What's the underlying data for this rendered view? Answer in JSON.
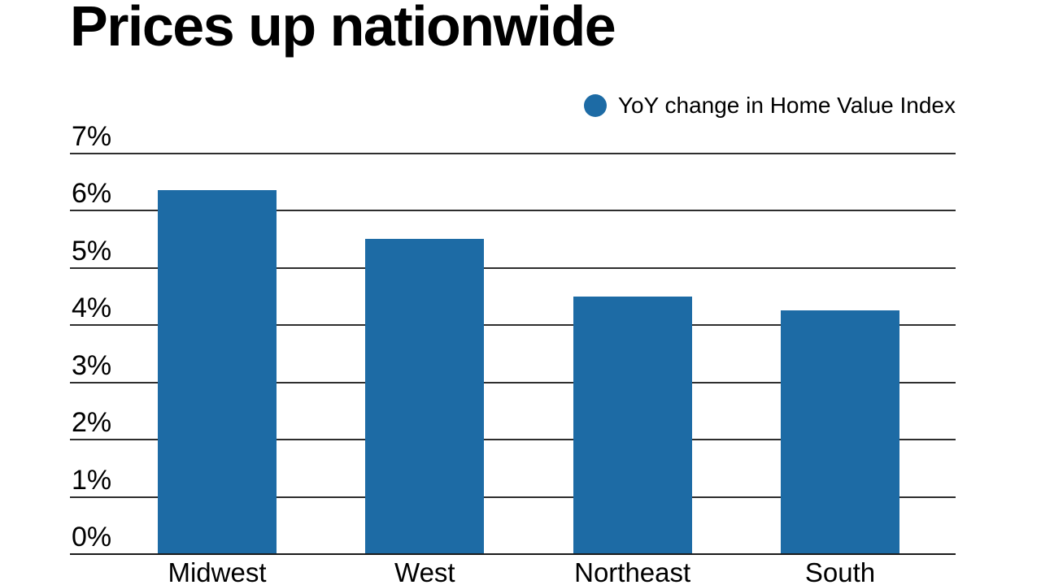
{
  "title": "Prices up nationwide",
  "legend": {
    "label": "YoY change in Home Value Index"
  },
  "colors": {
    "bar": "#1d6ba5",
    "gridline": "#2e2e2e",
    "baseline": "#1a1a1a",
    "text": "#000000",
    "background": "#ffffff"
  },
  "chart_data": {
    "type": "bar",
    "title": "Prices up nationwide",
    "categories": [
      "Midwest",
      "West",
      "Northeast",
      "South"
    ],
    "series": [
      {
        "name": "YoY change in Home Value Index",
        "values": [
          6.35,
          5.5,
          4.5,
          4.25
        ]
      }
    ],
    "xlabel": "",
    "ylabel": "",
    "ylim": [
      0,
      7
    ],
    "ytick_step": 1,
    "ytick_labels": [
      "0%",
      "1%",
      "2%",
      "3%",
      "4%",
      "5%",
      "6%",
      "7%"
    ],
    "grid": true,
    "legend_position": "top-right",
    "bar_color": "#1d6ba5"
  }
}
